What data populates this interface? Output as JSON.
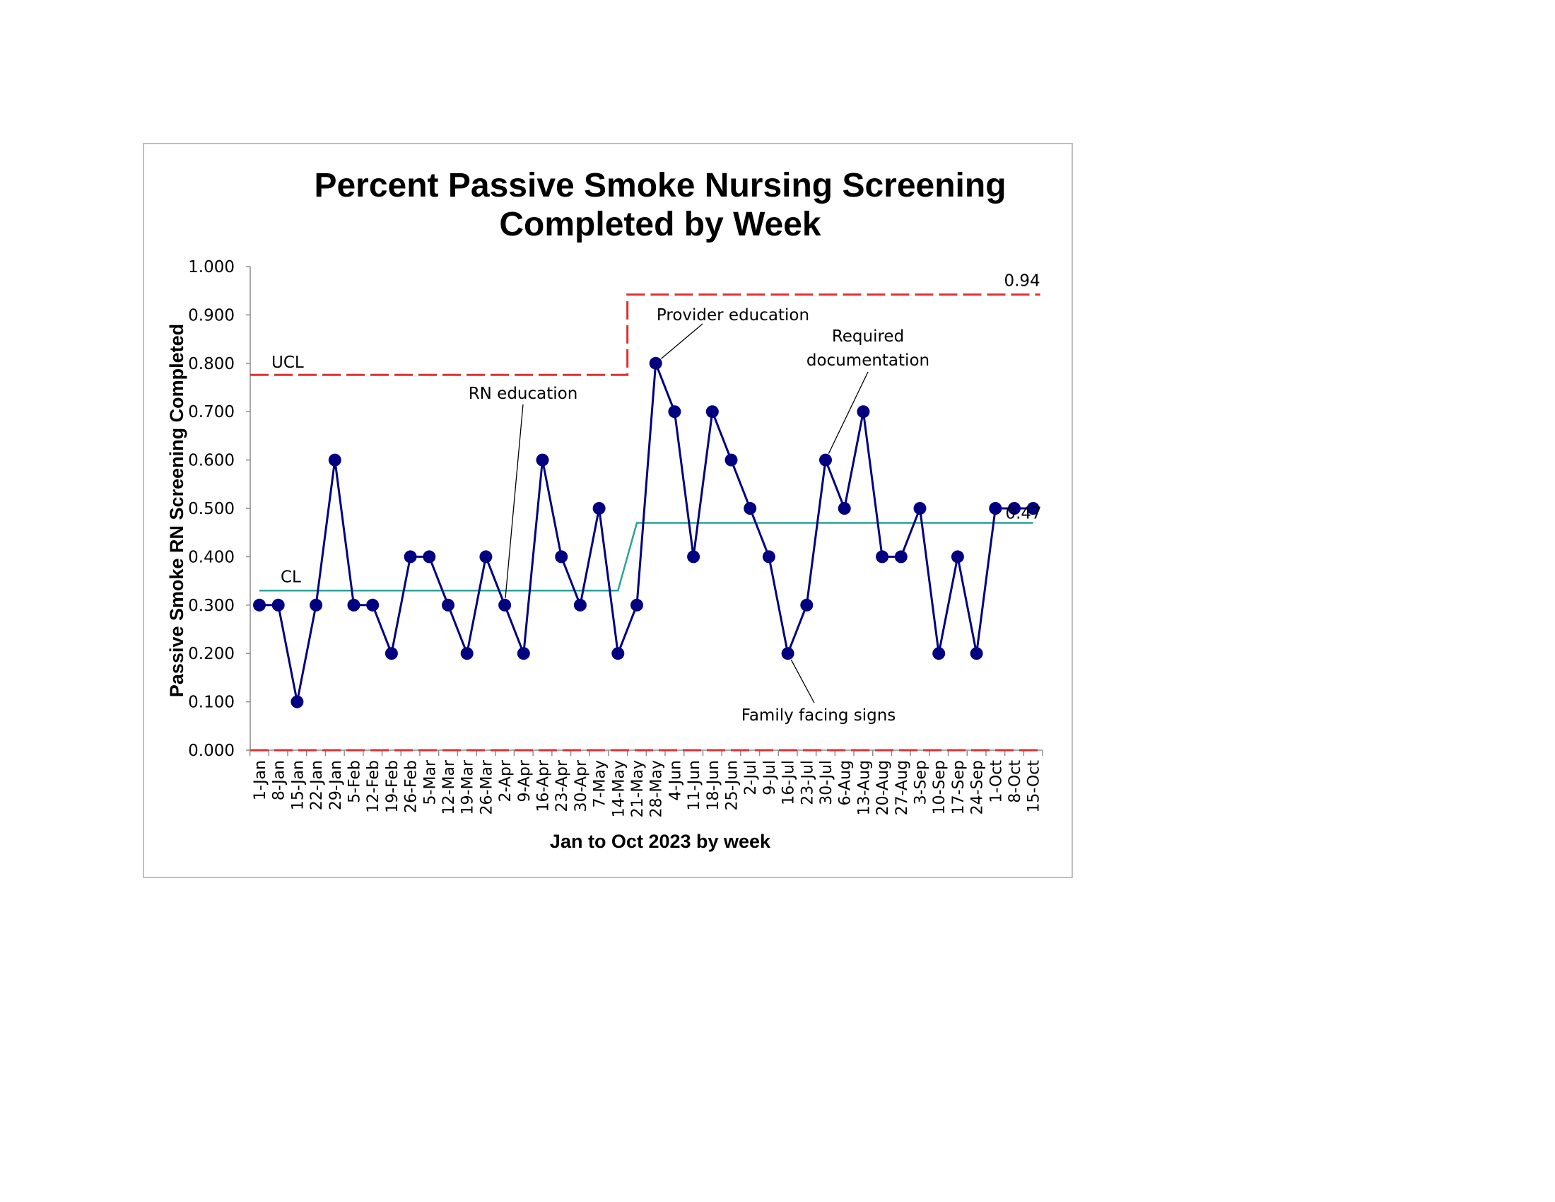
{
  "chart_data": {
    "type": "line",
    "title_lines": [
      "Percent Passive Smoke Nursing Screening",
      "Completed by Week"
    ],
    "xlabel": "Jan to Oct 2023 by week",
    "ylabel": "Passive Smoke RN Screening Completed",
    "ylim": [
      0,
      1
    ],
    "yticks": [
      "0.000",
      "0.100",
      "0.200",
      "0.300",
      "0.400",
      "0.500",
      "0.600",
      "0.700",
      "0.800",
      "0.900",
      "1.000"
    ],
    "categories": [
      "1-Jan",
      "8-Jan",
      "15-Jan",
      "22-Jan",
      "29-Jan",
      "5-Feb",
      "12-Feb",
      "19-Feb",
      "26-Feb",
      "5-Mar",
      "12-Mar",
      "19-Mar",
      "26-Mar",
      "2-Apr",
      "9-Apr",
      "16-Apr",
      "23-Apr",
      "30-Apr",
      "7-May",
      "14-May",
      "21-May",
      "28-May",
      "4-Jun",
      "11-Jun",
      "18-Jun",
      "25-Jun",
      "2-Jul",
      "9-Jul",
      "16-Jul",
      "23-Jul",
      "30-Jul",
      "6-Aug",
      "13-Aug",
      "20-Aug",
      "27-Aug",
      "3-Sep",
      "10-Sep",
      "17-Sep",
      "24-Sep",
      "1-Oct",
      "8-Oct",
      "15-Oct"
    ],
    "series": [
      {
        "values": [
          0.3,
          0.3,
          0.1,
          0.3,
          0.6,
          0.3,
          0.3,
          0.2,
          0.4,
          0.4,
          0.3,
          0.2,
          0.4,
          0.3,
          0.2,
          0.6,
          0.4,
          0.3,
          0.5,
          0.2,
          0.3,
          0.8,
          0.7,
          0.4,
          0.7,
          0.6,
          0.5,
          0.4,
          0.2,
          0.3,
          0.6,
          0.5,
          0.7,
          0.4,
          0.4,
          0.5,
          0.2,
          0.4,
          0.2,
          0.5,
          0.5,
          0.5
        ],
        "color": "#000080"
      }
    ],
    "center_line": {
      "label": "CL",
      "segments": [
        {
          "from": "1-Jan",
          "to": "14-May",
          "value": 0.33
        },
        {
          "from": "21-May",
          "to": "15-Oct",
          "value": 0.47
        }
      ],
      "end_label": "0.47",
      "color": "#2aa198"
    },
    "upper_control_limit": {
      "label": "UCL",
      "segments": [
        {
          "from": "1-Jan",
          "to": "14-May",
          "value": 0.776
        },
        {
          "from": "21-May",
          "to": "15-Oct",
          "value": 0.942
        }
      ],
      "end_label": "0.94",
      "color": "#e03030"
    },
    "lower_control_limit": {
      "value": 0.0,
      "color": "#e03030"
    },
    "annotations": [
      {
        "lines": [
          "RN education"
        ],
        "target": "2-Apr",
        "value": 0.3
      },
      {
        "lines": [
          "Provider education"
        ],
        "target": "28-May",
        "value": 0.8
      },
      {
        "lines": [
          "Required",
          "documentation"
        ],
        "target": "30-Jul",
        "value": 0.6
      },
      {
        "lines": [
          "Family facing signs"
        ],
        "target": "16-Jul",
        "value": 0.2
      }
    ],
    "grid": false,
    "legend": "none"
  }
}
